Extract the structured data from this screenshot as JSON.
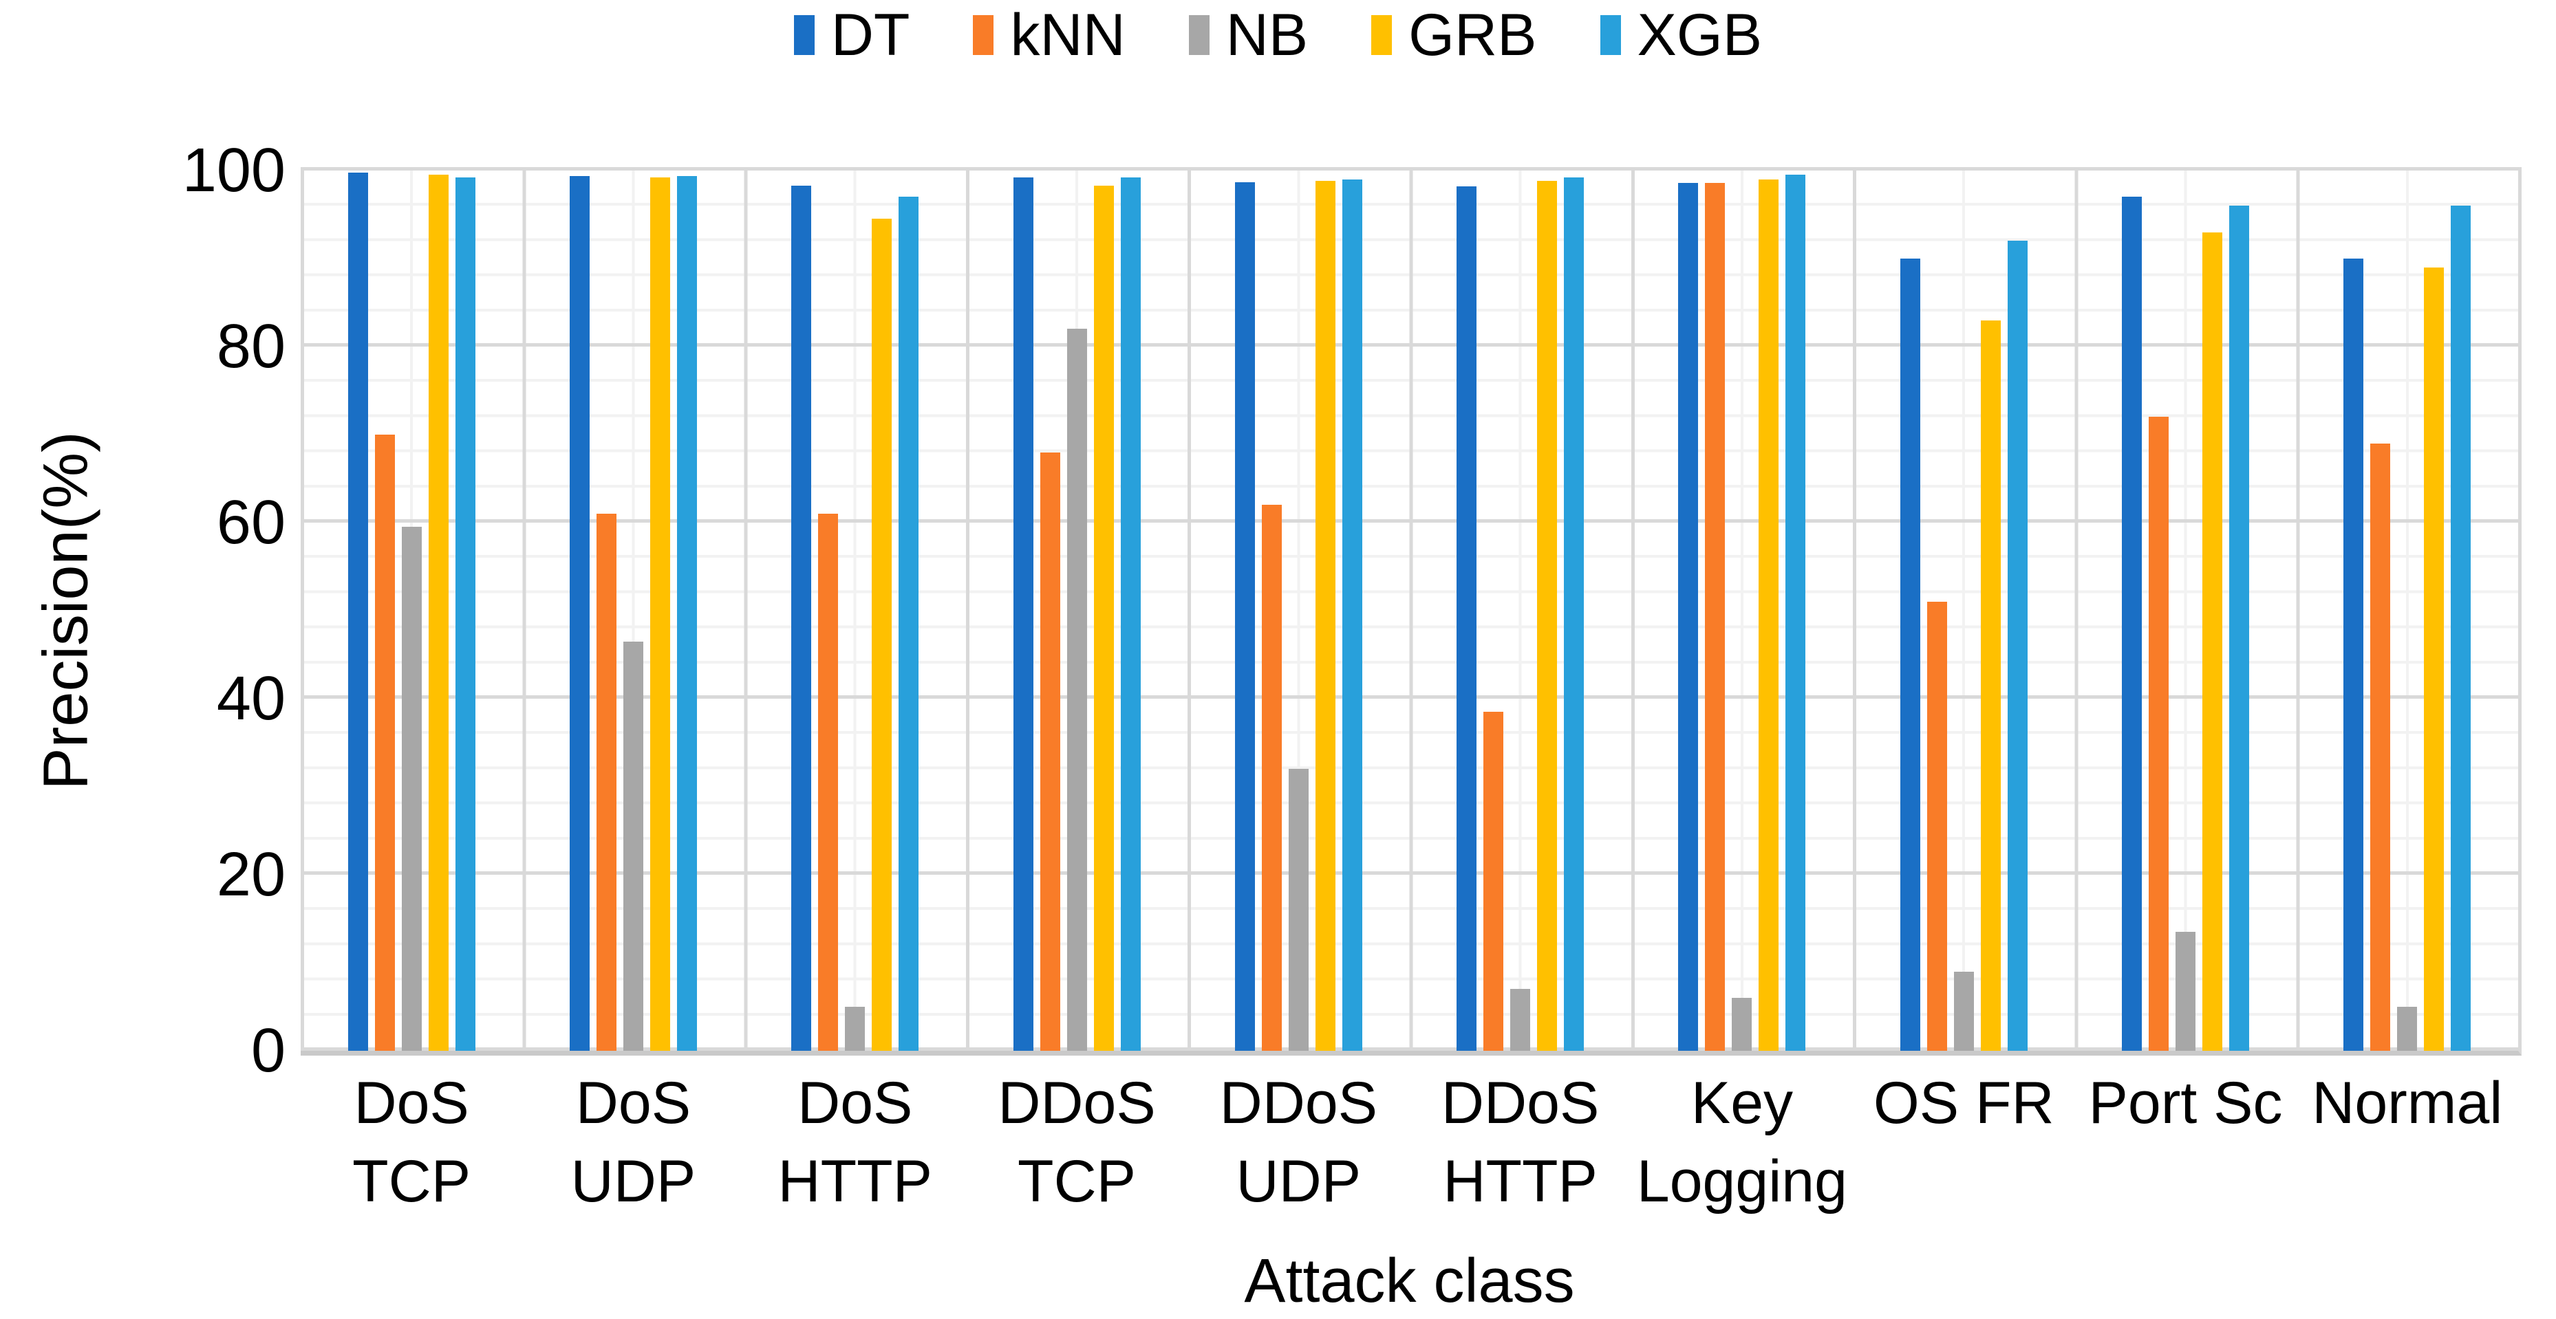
{
  "chart_data": {
    "type": "bar",
    "title": "",
    "xlabel": "Attack class",
    "ylabel": "Precision(%)",
    "ylim": [
      0,
      100
    ],
    "yticks": [
      0,
      20,
      40,
      60,
      80,
      100
    ],
    "y_major_unit": 20,
    "y_minor_unit": 4,
    "grid": true,
    "legend_position": "top",
    "grid_major_color": "#d9d9d9",
    "grid_minor_color": "#f2f2f2",
    "axis_line_color": "#c9c9c9",
    "categories": [
      "DoS\nTCP",
      "DoS\nUDP",
      "DoS\nHTTP",
      "DDoS\nTCP",
      "DDoS\nUDP",
      "DDoS\nHTTP",
      "Key\nLogging",
      "OS FR",
      "Port Sc",
      "Normal"
    ],
    "series": [
      {
        "name": "DT",
        "color": "#1a6fc5",
        "values": [
          99.8,
          99.4,
          98.3,
          99.2,
          98.7,
          98.2,
          98.6,
          90,
          97,
          90
        ]
      },
      {
        "name": "kNN",
        "color": "#f97c28",
        "values": [
          70,
          61,
          61,
          68,
          62,
          38.5,
          98.6,
          51,
          72,
          69
        ]
      },
      {
        "name": "NB",
        "color": "#a7a7a7",
        "values": [
          59.5,
          46.5,
          5,
          82,
          32,
          7,
          6,
          9,
          13.5,
          5
        ]
      },
      {
        "name": "GRB",
        "color": "#ffc000",
        "values": [
          99.5,
          99.2,
          94.5,
          98.3,
          98.8,
          98.8,
          99,
          83,
          93,
          89
        ]
      },
      {
        "name": "XGB",
        "color": "#28a0db",
        "values": [
          99.2,
          99.4,
          97,
          99.2,
          99,
          99.2,
          99.5,
          92,
          96,
          96
        ]
      }
    ]
  }
}
